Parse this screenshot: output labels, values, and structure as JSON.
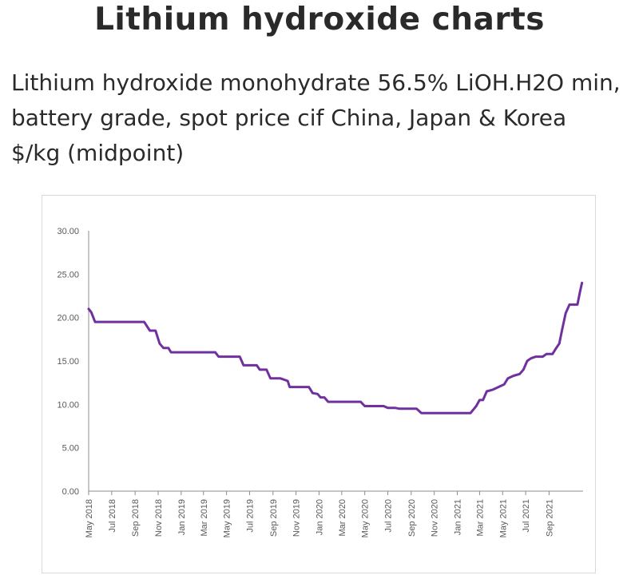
{
  "header": {
    "title": "Lithium hydroxide charts",
    "subtitle_lines": [
      "Lithium hydroxide monohydrate 56.5% LiOH.H2O min,",
      "battery grade, spot price cif China, Japan & Korea",
      "$/kg (midpoint)"
    ]
  },
  "chart_data": {
    "type": "line",
    "title": "",
    "xlabel": "",
    "ylabel": "",
    "ylim": [
      0,
      30
    ],
    "yticks": [
      "0.00",
      "5.00",
      "10.00",
      "15.00",
      "20.00",
      "25.00",
      "30.00"
    ],
    "xticks": [
      "May 2018",
      "Jul 2018",
      "Sep 2018",
      "Nov 2018",
      "Jan 2019",
      "Mar 2019",
      "May 2019",
      "Jul 2019",
      "Sep 2019",
      "Nov 2019",
      "Jan 2020",
      "Mar 2020",
      "May 2020",
      "Jul 2020",
      "Sep 2020",
      "Nov 2020",
      "Jan 2021",
      "Mar 2021",
      "May 2021",
      "Jul 2021",
      "Sep 2021"
    ],
    "grid": false,
    "legend": "none",
    "line_color": "#7030a0",
    "series": [
      {
        "values": [
          [
            "2018-05-01",
            21.0
          ],
          [
            "2018-05-08",
            20.6
          ],
          [
            "2018-05-18",
            19.5
          ],
          [
            "2018-06-01",
            19.5
          ],
          [
            "2018-07-01",
            19.5
          ],
          [
            "2018-08-01",
            19.5
          ],
          [
            "2018-09-01",
            19.5
          ],
          [
            "2018-09-25",
            19.5
          ],
          [
            "2018-10-10",
            18.5
          ],
          [
            "2018-10-25",
            18.5
          ],
          [
            "2018-11-05",
            17.0
          ],
          [
            "2018-11-15",
            16.5
          ],
          [
            "2018-11-28",
            16.5
          ],
          [
            "2018-12-05",
            16.0
          ],
          [
            "2019-01-01",
            16.0
          ],
          [
            "2019-02-01",
            16.0
          ],
          [
            "2019-03-01",
            16.0
          ],
          [
            "2019-04-01",
            16.0
          ],
          [
            "2019-04-10",
            15.5
          ],
          [
            "2019-05-01",
            15.5
          ],
          [
            "2019-06-05",
            15.5
          ],
          [
            "2019-06-15",
            14.5
          ],
          [
            "2019-07-20",
            14.5
          ],
          [
            "2019-07-28",
            14.0
          ],
          [
            "2019-08-15",
            14.0
          ],
          [
            "2019-08-25",
            13.0
          ],
          [
            "2019-09-20",
            13.0
          ],
          [
            "2019-10-10",
            12.7
          ],
          [
            "2019-10-15",
            12.0
          ],
          [
            "2019-12-05",
            12.0
          ],
          [
            "2019-12-15",
            11.3
          ],
          [
            "2019-12-28",
            11.2
          ],
          [
            "2020-01-05",
            10.8
          ],
          [
            "2020-01-15",
            10.8
          ],
          [
            "2020-01-25",
            10.3
          ],
          [
            "2020-04-20",
            10.3
          ],
          [
            "2020-05-01",
            9.8
          ],
          [
            "2020-06-20",
            9.8
          ],
          [
            "2020-07-01",
            9.6
          ],
          [
            "2020-07-20",
            9.6
          ],
          [
            "2020-08-01",
            9.5
          ],
          [
            "2020-09-01",
            9.5
          ],
          [
            "2020-09-15",
            9.5
          ],
          [
            "2020-09-28",
            9.0
          ],
          [
            "2020-11-01",
            9.0
          ],
          [
            "2021-01-01",
            9.0
          ],
          [
            "2021-02-05",
            9.0
          ],
          [
            "2021-02-20",
            9.8
          ],
          [
            "2021-03-01",
            10.5
          ],
          [
            "2021-03-10",
            10.5
          ],
          [
            "2021-03-20",
            11.5
          ],
          [
            "2021-04-05",
            11.7
          ],
          [
            "2021-04-20",
            12.0
          ],
          [
            "2021-05-05",
            12.3
          ],
          [
            "2021-05-15",
            13.0
          ],
          [
            "2021-05-30",
            13.3
          ],
          [
            "2021-06-15",
            13.5
          ],
          [
            "2021-06-25",
            14.0
          ],
          [
            "2021-07-05",
            15.0
          ],
          [
            "2021-07-15",
            15.3
          ],
          [
            "2021-07-28",
            15.5
          ],
          [
            "2021-08-15",
            15.5
          ],
          [
            "2021-08-25",
            15.8
          ],
          [
            "2021-09-10",
            15.8
          ],
          [
            "2021-09-20",
            16.5
          ],
          [
            "2021-09-28",
            17.0
          ],
          [
            "2021-10-05",
            18.5
          ],
          [
            "2021-10-15",
            20.5
          ],
          [
            "2021-10-25",
            21.5
          ],
          [
            "2021-11-05",
            21.5
          ],
          [
            "2021-11-15",
            21.5
          ],
          [
            "2021-11-22",
            23.0
          ],
          [
            "2021-11-27",
            24.0
          ]
        ]
      }
    ]
  }
}
